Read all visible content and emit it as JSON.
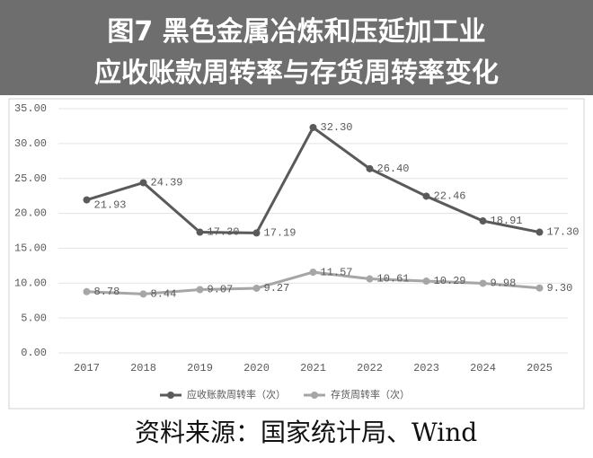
{
  "chart_data": {
    "type": "line",
    "title": [
      "图7 黑色金属冶炼和压延加工业",
      "应收账款周转率与存货周转率变化"
    ],
    "categories": [
      "2017",
      "2018",
      "2019",
      "2020",
      "2021",
      "2022",
      "2023",
      "2024",
      "2025"
    ],
    "series": [
      {
        "name": "应收账款周转率（次）",
        "color": "#5a5a5a",
        "values": [
          21.93,
          24.39,
          17.3,
          17.19,
          32.3,
          26.4,
          22.46,
          18.91,
          17.3
        ],
        "value_labels": [
          "21.93",
          "24.39",
          "17.30",
          "17.19",
          "32.30",
          "26.40",
          "22.46",
          "18.91",
          "17.30"
        ]
      },
      {
        "name": "存货周转率（次）",
        "color": "#a6a6a6",
        "values": [
          8.78,
          8.44,
          9.07,
          9.27,
          11.57,
          10.61,
          10.29,
          9.98,
          9.3
        ],
        "value_labels": [
          "8.78",
          "8.44",
          "9.07",
          "9.27",
          "11.57",
          "10.61",
          "10.29",
          "9.98",
          "9.30"
        ]
      }
    ],
    "ylim": [
      0,
      35
    ],
    "yticks": [
      {
        "value": 0,
        "label": "0.00"
      },
      {
        "value": 5,
        "label": "5.00"
      },
      {
        "value": 10,
        "label": "10.00"
      },
      {
        "value": 15,
        "label": "15.00"
      },
      {
        "value": 20,
        "label": "20.00"
      },
      {
        "value": 25,
        "label": "25.00"
      },
      {
        "value": 30,
        "label": "30.00"
      },
      {
        "value": 35,
        "label": "35.00"
      }
    ],
    "grid": true,
    "legend": "bottom",
    "source": "资料来源：国家统计局、Wind"
  }
}
